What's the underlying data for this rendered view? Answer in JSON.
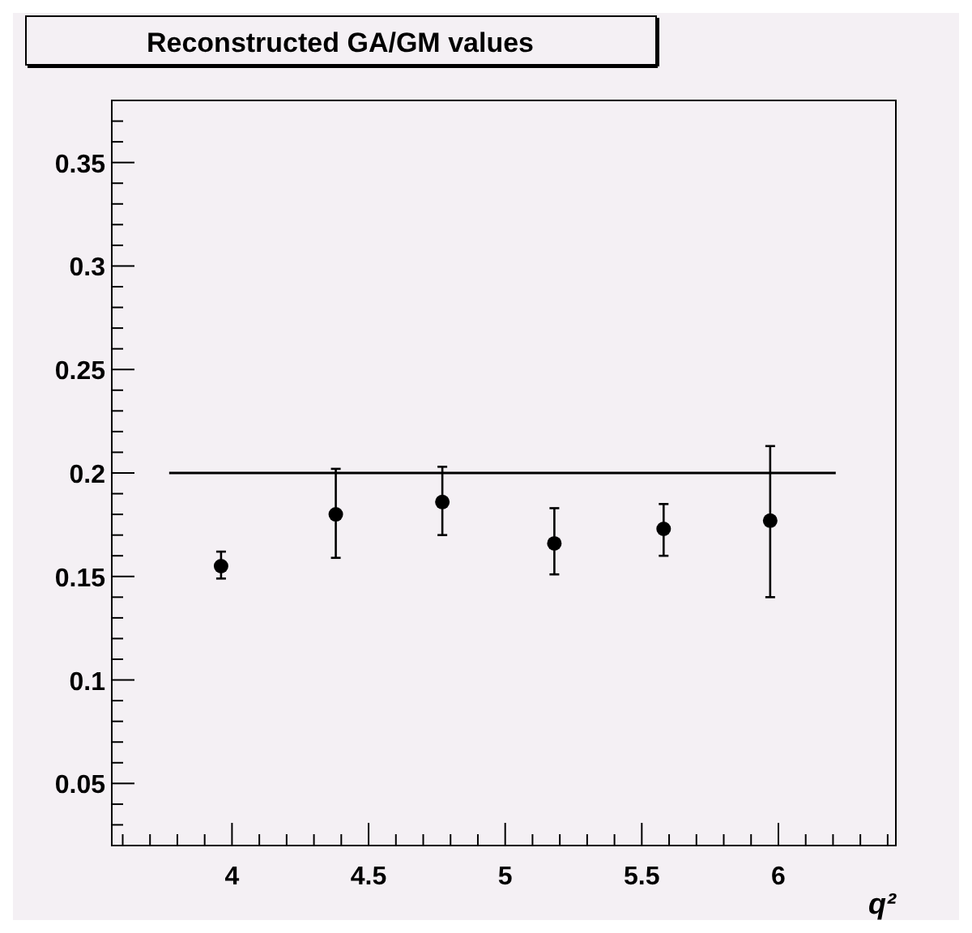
{
  "chart_data": {
    "type": "scatter",
    "title": "Reconstructed GA/GM values",
    "xlabel": "q²",
    "xlim": [
      3.56,
      6.43
    ],
    "ylim": [
      0.02,
      0.38
    ],
    "xticks": [
      {
        "value": 3.6,
        "label": null
      },
      {
        "value": 3.7,
        "label": null
      },
      {
        "value": 3.8,
        "label": null
      },
      {
        "value": 3.9,
        "label": null
      },
      4,
      {
        "value": 4.1,
        "label": null
      },
      {
        "value": 4.2,
        "label": null
      },
      {
        "value": 4.3,
        "label": null
      },
      {
        "value": 4.4,
        "label": null
      },
      4.5,
      {
        "value": 4.6,
        "label": null
      },
      {
        "value": 4.7,
        "label": null
      },
      {
        "value": 4.8,
        "label": null
      },
      {
        "value": 4.9,
        "label": null
      },
      5,
      {
        "value": 5.1,
        "label": null
      },
      {
        "value": 5.2,
        "label": null
      },
      {
        "value": 5.3,
        "label": null
      },
      {
        "value": 5.4,
        "label": null
      },
      5.5,
      {
        "value": 5.6,
        "label": null
      },
      {
        "value": 5.7,
        "label": null
      },
      {
        "value": 5.8,
        "label": null
      },
      {
        "value": 5.9,
        "label": null
      },
      6,
      {
        "value": 6.1,
        "label": null
      },
      {
        "value": 6.2,
        "label": null
      },
      {
        "value": 6.3,
        "label": null
      },
      {
        "value": 6.4,
        "label": null
      }
    ],
    "yticks": [
      {
        "value": 0.03,
        "label": null
      },
      {
        "value": 0.04,
        "label": null
      },
      0.05,
      {
        "value": 0.06,
        "label": null
      },
      {
        "value": 0.07,
        "label": null
      },
      {
        "value": 0.08,
        "label": null
      },
      {
        "value": 0.09,
        "label": null
      },
      0.1,
      {
        "value": 0.11,
        "label": null
      },
      {
        "value": 0.12,
        "label": null
      },
      {
        "value": 0.13,
        "label": null
      },
      {
        "value": 0.14,
        "label": null
      },
      0.15,
      {
        "value": 0.16,
        "label": null
      },
      {
        "value": 0.17,
        "label": null
      },
      {
        "value": 0.18,
        "label": null
      },
      {
        "value": 0.19,
        "label": null
      },
      0.2,
      {
        "value": 0.21,
        "label": null
      },
      {
        "value": 0.22,
        "label": null
      },
      {
        "value": 0.23,
        "label": null
      },
      {
        "value": 0.24,
        "label": null
      },
      0.25,
      {
        "value": 0.26,
        "label": null
      },
      {
        "value": 0.27,
        "label": null
      },
      {
        "value": 0.28,
        "label": null
      },
      {
        "value": 0.29,
        "label": null
      },
      0.3,
      {
        "value": 0.31,
        "label": null
      },
      {
        "value": 0.32,
        "label": null
      },
      {
        "value": 0.33,
        "label": null
      },
      {
        "value": 0.34,
        "label": null
      },
      0.35,
      {
        "value": 0.36,
        "label": null
      },
      {
        "value": 0.37,
        "label": null
      }
    ],
    "grid": false,
    "series": [
      {
        "marker": "circle",
        "color": "#000000",
        "x": [
          3.96,
          4.38,
          4.77,
          5.18,
          5.58,
          5.97
        ],
        "values": [
          0.155,
          0.18,
          0.186,
          0.166,
          0.173,
          0.177
        ],
        "errors": [
          [
            0.149,
            0.162
          ],
          [
            0.159,
            0.202
          ],
          [
            0.17,
            0.203
          ],
          [
            0.151,
            0.183
          ],
          [
            0.16,
            0.185
          ],
          [
            0.14,
            0.213
          ]
        ]
      },
      {
        "type": "line",
        "color": "#000000",
        "x": [
          3.77,
          6.21
        ],
        "values": [
          0.2,
          0.2
        ],
        "line_style": "solid"
      }
    ]
  }
}
